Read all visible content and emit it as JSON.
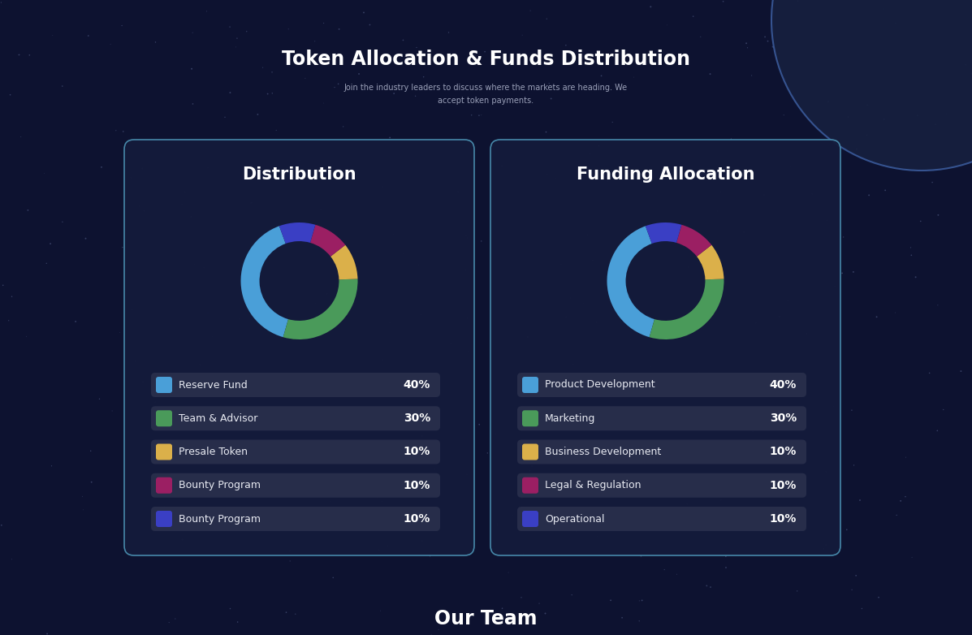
{
  "page": {
    "title": "Token Allocation & Funds Distribution",
    "subtitle": "Join the industry leaders to discuss where the markets are heading. We\naccept token payments.",
    "next_section": "Our Team"
  },
  "chart_data": [
    {
      "type": "pie",
      "title": "Distribution",
      "categories": [
        "Reserve Fund",
        "Team & Advisor",
        "Presale Token",
        "Bounty Program",
        "Bounty Program"
      ],
      "values": [
        40,
        30,
        10,
        10,
        10
      ],
      "value_labels": [
        "40%",
        "30%",
        "10%",
        "10%",
        "10%"
      ],
      "colors": [
        "#4a9fd8",
        "#4a9a5a",
        "#dbb04a",
        "#9b1f63",
        "#3a3fc4"
      ]
    },
    {
      "type": "pie",
      "title": "Funding Allocation",
      "categories": [
        "Product Development",
        "Marketing",
        "Business Development",
        "Legal & Regulation",
        "Operational"
      ],
      "values": [
        40,
        30,
        10,
        10,
        10
      ],
      "value_labels": [
        "40%",
        "30%",
        "10%",
        "10%",
        "10%"
      ],
      "colors": [
        "#4a9fd8",
        "#4a9a5a",
        "#dbb04a",
        "#9b1f63",
        "#3a3fc4"
      ]
    }
  ]
}
